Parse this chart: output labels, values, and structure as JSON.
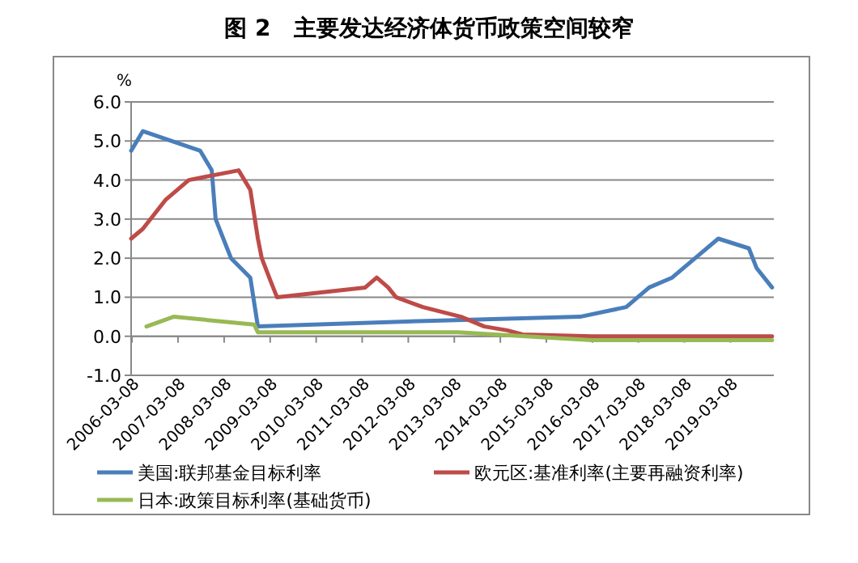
{
  "chart_data": {
    "type": "line",
    "title": "图 2　主要发达经济体货币政策空间较窄",
    "ylabel": "%",
    "xlim": [
      "2006-03-01",
      "2020-02-15"
    ],
    "xticks": [
      "2006-03-08",
      "2007-03-08",
      "2008-03-08",
      "2009-03-08",
      "2010-03-08",
      "2011-03-08",
      "2012-03-08",
      "2013-03-08",
      "2014-03-08",
      "2015-03-08",
      "2016-03-08",
      "2017-03-08",
      "2018-03-08",
      "2019-03-08"
    ],
    "ylim": [
      -1,
      6
    ],
    "yticks": [
      {
        "value": -1,
        "label": "-1.0"
      },
      {
        "value": 0,
        "label": "0.0"
      },
      {
        "value": 1,
        "label": "1.0"
      },
      {
        "value": 2,
        "label": "2.0"
      },
      {
        "value": 3,
        "label": "3.0"
      },
      {
        "value": 4,
        "label": "4.0"
      },
      {
        "value": 5,
        "label": "5.0"
      },
      {
        "value": 6,
        "label": "6.0"
      }
    ],
    "grid": "y",
    "legend": "bottom",
    "marker": "none",
    "line_style": "solid",
    "series": [
      {
        "name": "美国:联邦基金目标利率",
        "color": "#4a7ebb",
        "x": [
          "2006-03",
          "2006-06",
          "2007-09",
          "2007-12",
          "2008-01",
          "2008-04",
          "2008-05",
          "2008-10",
          "2008-12",
          "2012-10",
          "2015-12",
          "2016-12",
          "2017-06",
          "2017-12",
          "2018-06",
          "2018-12",
          "2019-08",
          "2019-10",
          "2020-02"
        ],
        "values": [
          4.75,
          5.25,
          4.75,
          4.25,
          3.0,
          2.25,
          2.0,
          1.5,
          0.25,
          0.4,
          0.5,
          0.75,
          1.25,
          1.5,
          2.0,
          2.5,
          2.25,
          1.75,
          1.25
        ]
      },
      {
        "name": "欧元区:基准利率(主要再融资利率)",
        "color": "#be4b48",
        "x": [
          "2006-03",
          "2006-06",
          "2006-12",
          "2007-06",
          "2008-07",
          "2008-10",
          "2008-12",
          "2009-01",
          "2009-03",
          "2009-05",
          "2011-04",
          "2011-07",
          "2011-10",
          "2011-12",
          "2012-07",
          "2013-05",
          "2013-11",
          "2014-05",
          "2014-09",
          "2016-03",
          "2020-02"
        ],
        "values": [
          2.5,
          2.75,
          3.5,
          4.0,
          4.25,
          3.75,
          2.5,
          2.0,
          1.5,
          1.0,
          1.25,
          1.5,
          1.25,
          1.0,
          0.75,
          0.5,
          0.25,
          0.15,
          0.05,
          0.0,
          0.0
        ]
      },
      {
        "name": "日本:政策目标利率(基础货币)",
        "color": "#98b954",
        "x": [
          "2006-07",
          "2007-02",
          "2008-11",
          "2008-12",
          "2013-04",
          "2016-03",
          "2020-02"
        ],
        "values": [
          0.25,
          0.5,
          0.3,
          0.1,
          0.1,
          -0.1,
          -0.1
        ]
      }
    ]
  }
}
